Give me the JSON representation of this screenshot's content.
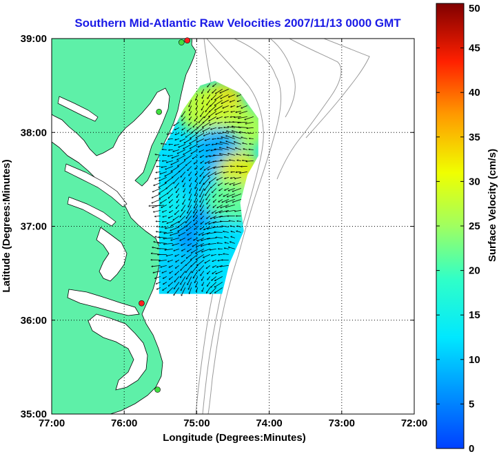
{
  "title": "Southern Mid-Atlantic Raw Velocities 2007/11/13 0000 GMT",
  "map": {
    "xlabel": "Longitude (Degrees:Minutes)",
    "ylabel": "Latitude (Degrees:Minutes)",
    "x_ticks": [
      "77:00",
      "76:00",
      "75:00",
      "74:00",
      "73:00",
      "72:00"
    ],
    "y_ticks": [
      "39:00",
      "38:00",
      "37:00",
      "36:00",
      "35:00"
    ],
    "x_range": [
      -77,
      -72
    ],
    "y_range": [
      35,
      39
    ],
    "grid": "dotted",
    "land_color": "#5ef0a8",
    "coast_color": "#000000",
    "bathymetry_color": "#999999"
  },
  "colorbar": {
    "label": "Surface Velocity (cm/s)",
    "ticks": [
      "50",
      "45",
      "40",
      "35",
      "30",
      "25",
      "20",
      "15",
      "10",
      "5",
      "0"
    ],
    "range": [
      0,
      50
    ]
  },
  "stations": [
    {
      "lon": -75.13,
      "lat": 38.98,
      "color": "#ff2020"
    },
    {
      "lon": -75.21,
      "lat": 38.96,
      "color": "#40e040"
    },
    {
      "lon": -75.52,
      "lat": 38.22,
      "color": "#40e040"
    },
    {
      "lon": -75.76,
      "lat": 36.18,
      "color": "#ff2020"
    },
    {
      "lon": -75.54,
      "lat": 35.26,
      "color": "#40e040"
    }
  ],
  "chart_data": {
    "type": "heatmap",
    "title": "Southern Mid-Atlantic Raw Velocities 2007/11/13 0000 GMT",
    "xlabel": "Longitude (Degrees:Minutes)",
    "ylabel": "Latitude (Degrees:Minutes)",
    "colorbar_label": "Surface Velocity (cm/s)",
    "xlim": [
      -77,
      -72
    ],
    "ylim": [
      35,
      39
    ],
    "clim": [
      0,
      50
    ],
    "field_extent": {
      "lon": [
        -75.52,
        -74.15
      ],
      "lat": [
        36.28,
        38.55
      ]
    },
    "speed_samples": [
      {
        "lon": -74.65,
        "lat": 38.3,
        "speed": 33
      },
      {
        "lon": -74.95,
        "lat": 38.25,
        "speed": 28
      },
      {
        "lon": -74.35,
        "lat": 38.05,
        "speed": 27
      },
      {
        "lon": -74.7,
        "lat": 37.8,
        "speed": 8
      },
      {
        "lon": -75.1,
        "lat": 37.55,
        "speed": 10
      },
      {
        "lon": -74.4,
        "lat": 37.55,
        "speed": 32
      },
      {
        "lon": -74.55,
        "lat": 37.25,
        "speed": 22
      },
      {
        "lon": -75.0,
        "lat": 36.95,
        "speed": 6
      },
      {
        "lon": -74.65,
        "lat": 36.85,
        "speed": 12
      },
      {
        "lon": -75.2,
        "lat": 36.5,
        "speed": 10
      },
      {
        "lon": -75.4,
        "lat": 37.2,
        "speed": 14
      }
    ],
    "mean_flow_direction": "southwest"
  }
}
